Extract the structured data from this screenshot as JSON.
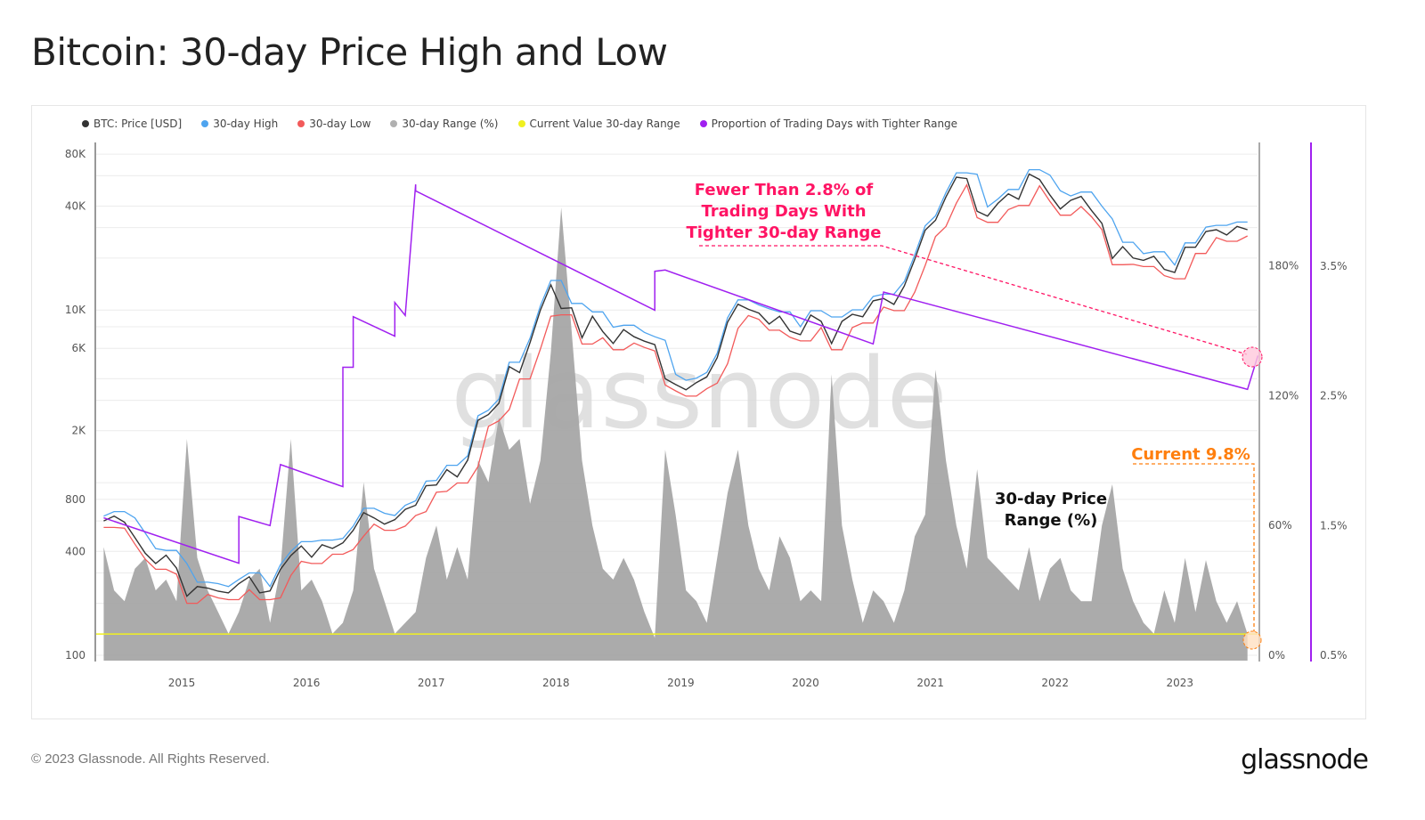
{
  "title": "Bitcoin: 30-day Price High and Low",
  "footer": "© 2023 Glassnode. All Rights Reserved.",
  "logo": "glassnode",
  "watermark": "glassnode",
  "legend": [
    {
      "label": "BTC: Price [USD]",
      "color": "#333333"
    },
    {
      "label": "30-day High",
      "color": "#4ea4ef"
    },
    {
      "label": "30-day Low",
      "color": "#f25a5a"
    },
    {
      "label": "30-day Range (%)",
      "color": "#b0b0b0"
    },
    {
      "label": "Current Value 30-day Range",
      "color": "#f0f020"
    },
    {
      "label": "Proportion of Trading Days with Tighter Range",
      "color": "#a020f0"
    }
  ],
  "annotations": {
    "tighter": [
      "Fewer Than 2.8% of",
      "Trading Days With",
      "Tighter 30-day Range"
    ],
    "tighter_color": "#ff1464",
    "current": "Current 9.8%",
    "current_color": "#ff7f0e",
    "range_label": [
      "30-day Price",
      "Range (%)"
    ]
  },
  "chart_data": {
    "type": "line",
    "title": "Bitcoin: 30-day Price High and Low",
    "x_ticks": [
      "2015",
      "2016",
      "2017",
      "2018",
      "2019",
      "2020",
      "2021",
      "2022",
      "2023"
    ],
    "y_left": {
      "scale": "log",
      "range": [
        100,
        80000
      ],
      "ticks": [
        {
          "v": 100,
          "l": "100"
        },
        {
          "v": 400,
          "l": "400"
        },
        {
          "v": 800,
          "l": "800"
        },
        {
          "v": 2000,
          "l": "2K"
        },
        {
          "v": 6000,
          "l": "6K"
        },
        {
          "v": 10000,
          "l": "10K"
        },
        {
          "v": 40000,
          "l": "40K"
        },
        {
          "v": 80000,
          "l": "80K"
        }
      ]
    },
    "y_right_range": {
      "range": [
        0,
        240
      ],
      "ticks": [
        "0%",
        "60%",
        "120%",
        "180%"
      ],
      "tick_values": [
        0,
        60,
        120,
        180
      ]
    },
    "y_right_proportion": {
      "range": [
        0.5,
        4.5
      ],
      "ticks": [
        "0.5%",
        "1.5%",
        "2.5%",
        "3.5%"
      ],
      "tick_values": [
        0.5,
        1.5,
        2.5,
        3.5
      ]
    },
    "grid": true,
    "legend_position": "top-left",
    "dates": [
      "2014-05",
      "2014-06",
      "2014-07",
      "2014-08",
      "2014-09",
      "2014-10",
      "2014-11",
      "2014-12",
      "2015-01",
      "2015-02",
      "2015-03",
      "2015-04",
      "2015-05",
      "2015-06",
      "2015-07",
      "2015-08",
      "2015-09",
      "2015-10",
      "2015-11",
      "2015-12",
      "2016-01",
      "2016-02",
      "2016-03",
      "2016-04",
      "2016-05",
      "2016-06",
      "2016-07",
      "2016-08",
      "2016-09",
      "2016-10",
      "2016-11",
      "2016-12",
      "2017-01",
      "2017-02",
      "2017-03",
      "2017-04",
      "2017-05",
      "2017-06",
      "2017-07",
      "2017-08",
      "2017-09",
      "2017-10",
      "2017-11",
      "2017-12",
      "2018-01",
      "2018-02",
      "2018-03",
      "2018-04",
      "2018-05",
      "2018-06",
      "2018-07",
      "2018-08",
      "2018-09",
      "2018-10",
      "2018-11",
      "2018-12",
      "2019-01",
      "2019-02",
      "2019-03",
      "2019-04",
      "2019-05",
      "2019-06",
      "2019-07",
      "2019-08",
      "2019-09",
      "2019-10",
      "2019-11",
      "2019-12",
      "2020-01",
      "2020-02",
      "2020-03",
      "2020-04",
      "2020-05",
      "2020-06",
      "2020-07",
      "2020-08",
      "2020-09",
      "2020-10",
      "2020-11",
      "2020-12",
      "2021-01",
      "2021-02",
      "2021-03",
      "2021-04",
      "2021-05",
      "2021-06",
      "2021-07",
      "2021-08",
      "2021-09",
      "2021-10",
      "2021-11",
      "2021-12",
      "2022-01",
      "2022-02",
      "2022-03",
      "2022-04",
      "2022-05",
      "2022-06",
      "2022-07",
      "2022-08",
      "2022-09",
      "2022-10",
      "2022-11",
      "2022-12",
      "2023-01",
      "2023-02",
      "2023-03",
      "2023-04",
      "2023-05",
      "2023-06",
      "2023-07"
    ],
    "series": [
      {
        "name": "BTC: Price [USD]",
        "axis": "left",
        "color": "#333333",
        "values": [
          600,
          640,
          590,
          480,
          390,
          340,
          380,
          320,
          220,
          250,
          245,
          235,
          230,
          260,
          285,
          230,
          236,
          315,
          378,
          430,
          370,
          437,
          416,
          448,
          530,
          670,
          625,
          575,
          610,
          700,
          740,
          960,
          970,
          1190,
          1080,
          1350,
          2300,
          2480,
          2880,
          4700,
          4340,
          6470,
          10000,
          14000,
          10200,
          10300,
          6900,
          9200,
          7500,
          6400,
          7700,
          7000,
          6600,
          6300,
          4000,
          3700,
          3450,
          3800,
          4100,
          5300,
          8500,
          10800,
          10100,
          9600,
          8300,
          9200,
          7550,
          7200,
          9350,
          8600,
          6400,
          8600,
          9450,
          9140,
          11300,
          11650,
          10780,
          13800,
          19700,
          29000,
          33100,
          45200,
          58800,
          57700,
          37300,
          35000,
          41500,
          47100,
          43800,
          61300,
          57000,
          46300,
          38500,
          43200,
          45500,
          37700,
          31800,
          19900,
          23300,
          20000,
          19400,
          20500,
          17200,
          16500,
          23100,
          23100,
          28500,
          29200,
          27200,
          30500,
          29200
        ]
      },
      {
        "name": "30-day High",
        "axis": "left",
        "color": "#4ea4ef",
        "values": [
          640,
          680,
          680,
          625,
          510,
          415,
          405,
          405,
          340,
          265,
          265,
          260,
          250,
          275,
          300,
          300,
          250,
          335,
          400,
          455,
          455,
          465,
          465,
          475,
          560,
          710,
          710,
          665,
          645,
          740,
          785,
          1020,
          1030,
          1260,
          1260,
          1430,
          2440,
          2630,
          3050,
          4980,
          4980,
          6860,
          10600,
          14840,
          14840,
          10920,
          10920,
          9750,
          9750,
          7950,
          8160,
          8160,
          7420,
          7000,
          6680,
          4240,
          3920,
          4030,
          4350,
          5620,
          9010,
          11450,
          11450,
          10700,
          10180,
          9750,
          9750,
          8000,
          9910,
          9910,
          9120,
          9120,
          10020,
          10020,
          11980,
          12350,
          12350,
          14630,
          20880,
          30740,
          35090,
          47910,
          62330,
          62330,
          61160,
          39540,
          43990,
          49930,
          49930,
          64980,
          64980,
          60420,
          49080,
          45790,
          48230,
          48230,
          39960,
          33710,
          24700,
          24700,
          21200,
          21730,
          21730,
          18230,
          24490,
          24490,
          30210,
          30950,
          30950,
          32330,
          32330
        ]
      },
      {
        "name": "30-day Low",
        "axis": "left",
        "color": "#f25a5a",
        "values": [
          550,
          550,
          545,
          440,
          360,
          315,
          315,
          295,
          200,
          200,
          225,
          215,
          210,
          210,
          240,
          210,
          210,
          215,
          290,
          350,
          340,
          340,
          385,
          385,
          410,
          490,
          575,
          530,
          530,
          560,
          645,
          680,
          880,
          890,
          995,
          995,
          1240,
          2120,
          2280,
          2650,
          3990,
          3990,
          5950,
          9200,
          9380,
          9380,
          6350,
          6350,
          6900,
          5890,
          5890,
          6440,
          6070,
          5800,
          3680,
          3400,
          3170,
          3170,
          3500,
          3770,
          4880,
          7820,
          9290,
          8830,
          7640,
          7640,
          6950,
          6620,
          6620,
          7910,
          5890,
          5890,
          7910,
          8410,
          8410,
          10400,
          9920,
          9920,
          12700,
          18120,
          26680,
          30450,
          41580,
          53080,
          34320,
          32200,
          32200,
          38180,
          40300,
          40300,
          52440,
          42600,
          35420,
          35420,
          39740,
          34680,
          29260,
          18310,
          18310,
          18400,
          17850,
          17850,
          15820,
          15180,
          15180,
          21250,
          21250,
          26260,
          25020,
          25020,
          26860
        ]
      },
      {
        "name": "30-day Range (%)",
        "axis": "right_range",
        "color": "#a6a6a6",
        "values": [
          50,
          30,
          25,
          40,
          45,
          30,
          35,
          25,
          100,
          45,
          30,
          20,
          10,
          20,
          35,
          40,
          15,
          40,
          100,
          30,
          35,
          25,
          10,
          15,
          30,
          80,
          40,
          25,
          10,
          15,
          20,
          45,
          60,
          35,
          50,
          35,
          90,
          80,
          110,
          95,
          100,
          70,
          90,
          140,
          207,
          150,
          90,
          60,
          40,
          35,
          45,
          35,
          20,
          8,
          95,
          65,
          30,
          25,
          15,
          45,
          75,
          95,
          60,
          40,
          30,
          55,
          45,
          25,
          30,
          25,
          130,
          60,
          35,
          15,
          30,
          25,
          15,
          30,
          55,
          65,
          132,
          90,
          60,
          40,
          86,
          45,
          40,
          35,
          30,
          50,
          25,
          40,
          45,
          30,
          25,
          25,
          60,
          79,
          40,
          25,
          15,
          10,
          30,
          15,
          45,
          20,
          44,
          25,
          15,
          25,
          9.8
        ]
      }
    ],
    "current_value_30d_range": {
      "name": "Current Value 30-day Range",
      "value": 9.8,
      "axis": "right_range",
      "color": "#f0f020"
    },
    "proportion_series": {
      "name": "Proportion of Trading Days with Tighter Range",
      "axis": "right_proportion",
      "color": "#a020f0",
      "points": [
        [
          "2014-05",
          1.56
        ],
        [
          "2015-06",
          1.21
        ],
        [
          "2015-06",
          1.57
        ],
        [
          "2015-09",
          1.5
        ],
        [
          "2015-10",
          1.97
        ],
        [
          "2016-04",
          1.8
        ],
        [
          "2016-04",
          2.72
        ],
        [
          "2016-05",
          2.72
        ],
        [
          "2016-05",
          3.11
        ],
        [
          "2016-09",
          2.96
        ],
        [
          "2016-09",
          3.22
        ],
        [
          "2016-10",
          3.12
        ],
        [
          "2016-11",
          4.13
        ],
        [
          "2016-11",
          4.08
        ],
        [
          "2018-10",
          3.16
        ],
        [
          "2018-10",
          3.46
        ],
        [
          "2018-11",
          3.47
        ],
        [
          "2020-07",
          2.9
        ],
        [
          "2020-08",
          3.3
        ],
        [
          "2023-07",
          2.55
        ],
        [
          "2023-08",
          2.81
        ]
      ]
    }
  }
}
